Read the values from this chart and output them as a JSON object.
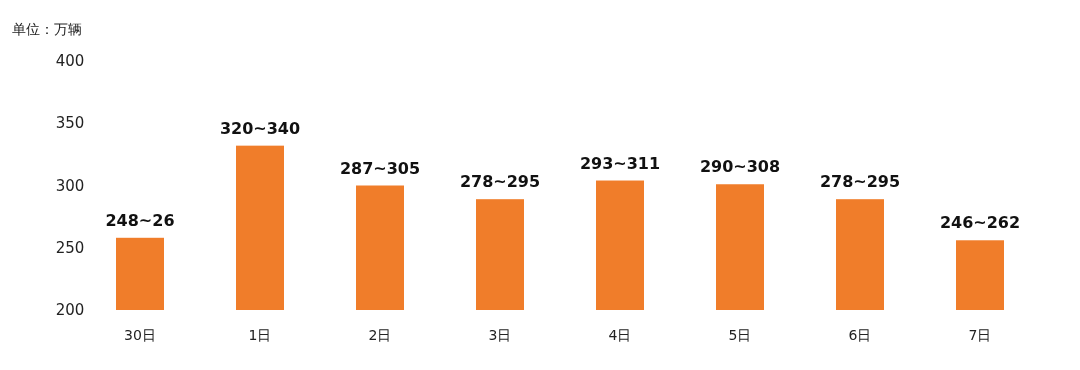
{
  "chart_data": {
    "type": "bar",
    "ylabel": "单位：万辆",
    "categories": [
      "30日",
      "1日",
      "2日",
      "3日",
      "4日",
      "5日",
      "6日",
      "7日"
    ],
    "values": [
      258,
      332,
      300,
      289,
      304,
      301,
      289,
      256
    ],
    "annotations": [
      {
        "text": "248~26",
        "x": "30日",
        "y": 258
      },
      {
        "text": "320~340",
        "x": "1日",
        "y": 332
      },
      {
        "text": "287~305",
        "x": "2日",
        "y": 300
      },
      {
        "text": "278~295",
        "x": "3日",
        "y": 289
      },
      {
        "text": "293~311",
        "x": "4日",
        "y": 304
      },
      {
        "text": "290~308",
        "x": "5日",
        "y": 301
      },
      {
        "text": "278~295",
        "x": "6日",
        "y": 289
      },
      {
        "text": "246~262",
        "x": "7日",
        "y": 256
      }
    ],
    "color": "#f07d2a",
    "ylim": [
      200,
      400
    ],
    "yticks": [
      200,
      250,
      300,
      350,
      400
    ]
  }
}
